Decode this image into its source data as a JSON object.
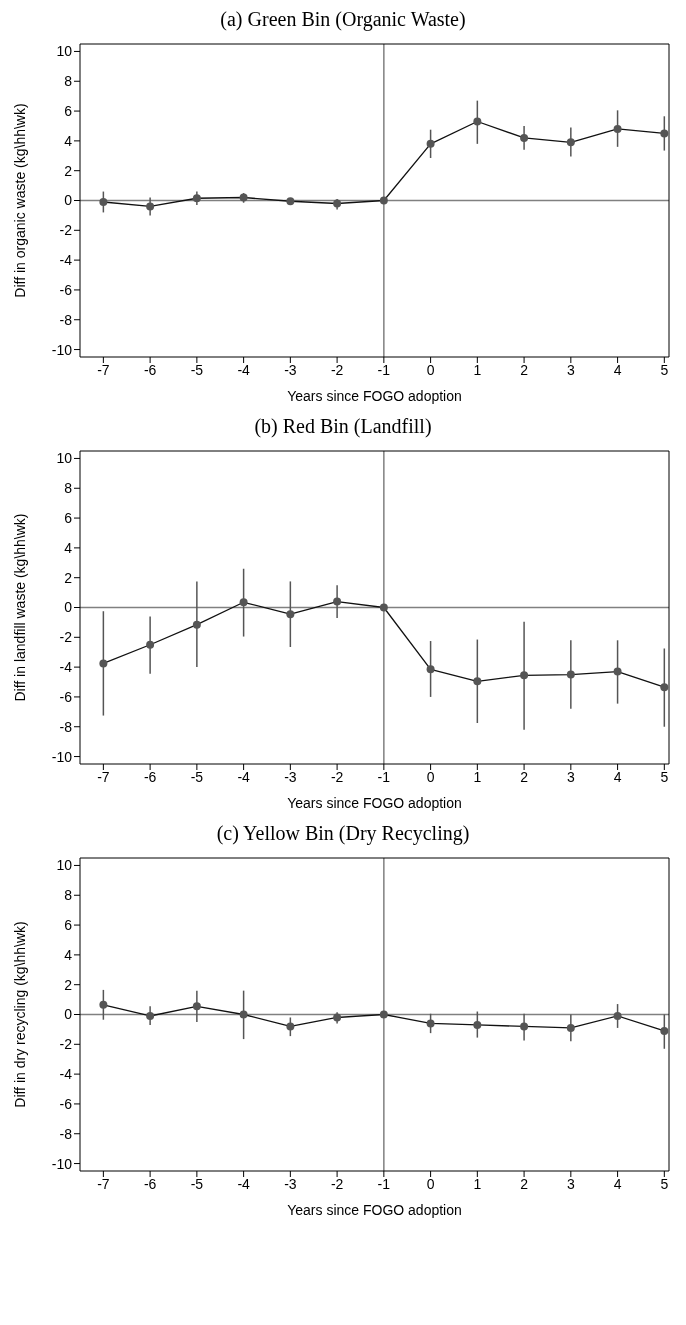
{
  "chart_data": [
    {
      "type": "line",
      "title": "(a) Green Bin (Organic Waste)",
      "xlabel": "Years since FOGO  adoption",
      "ylabel": "Diff in organic waste (kg\\hh\\wk)",
      "x": [
        -7,
        -6,
        -5,
        -4,
        -3,
        -2,
        -1,
        0,
        1,
        2,
        3,
        4,
        5
      ],
      "series": [
        {
          "color": "#555555",
          "values": [
            -0.1,
            -0.4,
            0.15,
            0.2,
            -0.05,
            -0.2,
            0,
            3.8,
            5.3,
            4.2,
            3.9,
            4.8,
            4.5
          ],
          "errors": [
            [
              -0.8,
              0.6
            ],
            [
              -1.0,
              0.2
            ],
            [
              -0.3,
              0.6
            ],
            [
              -0.15,
              0.5
            ],
            [
              -0.2,
              0.1
            ],
            [
              -0.6,
              0.1
            ],
            null,
            [
              2.85,
              4.75
            ],
            [
              3.8,
              6.7
            ],
            [
              3.4,
              5.0
            ],
            [
              2.95,
              4.9
            ],
            [
              3.6,
              6.05
            ],
            [
              3.35,
              5.65
            ]
          ]
        }
      ],
      "xlim": [
        -7.5,
        5.1
      ],
      "xticks": [
        -7,
        -6,
        -5,
        -4,
        -3,
        -2,
        -1,
        0,
        1,
        2,
        3,
        4,
        5
      ],
      "ylim": [
        -10.5,
        10.5
      ],
      "yticks": [
        -10,
        -8,
        -6,
        -4,
        -2,
        0,
        2,
        4,
        6,
        8,
        10
      ],
      "marker": "circle",
      "line_style": "solid",
      "grid": false,
      "legend": false,
      "ref_lines": [
        {
          "axis": "y",
          "value": 0,
          "color": "#808080"
        },
        {
          "axis": "x",
          "value": -1,
          "color": "#808080"
        }
      ]
    },
    {
      "type": "line",
      "title": "(b) Red Bin (Landfill)",
      "xlabel": "Years since FOGO  adoption",
      "ylabel": "Diff in landfill waste (kg\\hh\\wk)",
      "x": [
        -7,
        -6,
        -5,
        -4,
        -3,
        -2,
        -1,
        0,
        1,
        2,
        3,
        4,
        5
      ],
      "series": [
        {
          "color": "#555555",
          "values": [
            -3.75,
            -2.5,
            -1.15,
            0.35,
            -0.45,
            0.4,
            0,
            -4.15,
            -4.95,
            -4.55,
            -4.5,
            -4.3,
            -5.35
          ],
          "errors": [
            [
              -7.25,
              -0.25
            ],
            [
              -4.45,
              -0.6
            ],
            [
              -4.0,
              1.75
            ],
            [
              -1.95,
              2.6
            ],
            [
              -2.65,
              1.75
            ],
            [
              -0.7,
              1.5
            ],
            null,
            [
              -6.0,
              -2.25
            ],
            [
              -7.75,
              -2.15
            ],
            [
              -8.2,
              -0.95
            ],
            [
              -6.8,
              -2.2
            ],
            [
              -6.45,
              -2.2
            ],
            [
              -8.0,
              -2.75
            ]
          ]
        }
      ],
      "xlim": [
        -7.5,
        5.1
      ],
      "xticks": [
        -7,
        -6,
        -5,
        -4,
        -3,
        -2,
        -1,
        0,
        1,
        2,
        3,
        4,
        5
      ],
      "ylim": [
        -10.5,
        10.5
      ],
      "yticks": [
        -10,
        -8,
        -6,
        -4,
        -2,
        0,
        2,
        4,
        6,
        8,
        10
      ],
      "marker": "circle",
      "line_style": "solid",
      "grid": false,
      "legend": false,
      "ref_lines": [
        {
          "axis": "y",
          "value": 0,
          "color": "#808080"
        },
        {
          "axis": "x",
          "value": -1,
          "color": "#808080"
        }
      ]
    },
    {
      "type": "line",
      "title": "(c) Yellow Bin (Dry Recycling)",
      "xlabel": "Years since FOGO  adoption",
      "ylabel": "Diff in dry recycling (kg\\hh\\wk)",
      "x": [
        -7,
        -6,
        -5,
        -4,
        -3,
        -2,
        -1,
        0,
        1,
        2,
        3,
        4,
        5
      ],
      "series": [
        {
          "color": "#555555",
          "values": [
            0.65,
            -0.1,
            0.55,
            0,
            -0.8,
            -0.2,
            0,
            -0.6,
            -0.7,
            -0.8,
            -0.9,
            -0.1,
            -1.1
          ],
          "errors": [
            [
              -0.35,
              1.65
            ],
            [
              -0.7,
              0.55
            ],
            [
              -0.5,
              1.6
            ],
            [
              -1.65,
              1.6
            ],
            [
              -1.45,
              -0.2
            ],
            [
              -0.6,
              0.15
            ],
            null,
            [
              -1.25,
              0.05
            ],
            [
              -1.55,
              0.2
            ],
            [
              -1.75,
              0.05
            ],
            [
              -1.8,
              0
            ],
            [
              -0.9,
              0.7
            ],
            [
              -2.3,
              0
            ]
          ]
        }
      ],
      "xlim": [
        -7.5,
        5.1
      ],
      "xticks": [
        -7,
        -6,
        -5,
        -4,
        -3,
        -2,
        -1,
        0,
        1,
        2,
        3,
        4,
        5
      ],
      "ylim": [
        -10.5,
        10.5
      ],
      "yticks": [
        -10,
        -8,
        -6,
        -4,
        -2,
        0,
        2,
        4,
        6,
        8,
        10
      ],
      "marker": "circle",
      "line_style": "solid",
      "grid": false,
      "legend": false,
      "ref_lines": [
        {
          "axis": "y",
          "value": 0,
          "color": "#808080"
        },
        {
          "axis": "x",
          "value": -1,
          "color": "#808080"
        }
      ]
    }
  ]
}
